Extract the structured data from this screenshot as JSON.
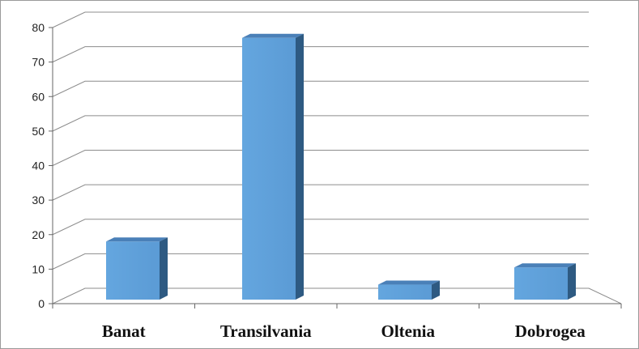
{
  "chart_data": {
    "type": "bar",
    "style": "3d-column",
    "categories": [
      "Banat",
      "Transilvania",
      "Oltenia",
      "Dobrogea"
    ],
    "values": [
      18,
      77,
      5.5,
      10.5
    ],
    "ylim": [
      0,
      80
    ],
    "yticks": [
      0,
      10,
      20,
      30,
      40,
      50,
      60,
      70,
      80
    ],
    "grid": true,
    "legend": "none",
    "title": "",
    "xlabel": "",
    "ylabel": "",
    "colors": {
      "bar_front": "#5b9bd5",
      "bar_side": "#2e5a82",
      "bar_top": "#4a80b8",
      "grid": "#8c8c8c"
    }
  }
}
